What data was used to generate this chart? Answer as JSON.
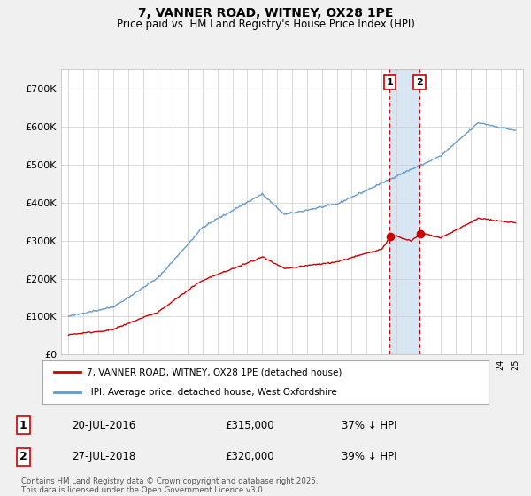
{
  "title": "7, VANNER ROAD, WITNEY, OX28 1PE",
  "subtitle": "Price paid vs. HM Land Registry's House Price Index (HPI)",
  "legend_line1": "7, VANNER ROAD, WITNEY, OX28 1PE (detached house)",
  "legend_line2": "HPI: Average price, detached house, West Oxfordshire",
  "sale1_date": "20-JUL-2016",
  "sale1_price": "£315,000",
  "sale1_hpi": "37% ↓ HPI",
  "sale1_year": 2016.55,
  "sale1_value": 315000,
  "sale2_date": "27-JUL-2018",
  "sale2_price": "£320,000",
  "sale2_hpi": "39% ↓ HPI",
  "sale2_year": 2018.55,
  "sale2_value": 320000,
  "footnote": "Contains HM Land Registry data © Crown copyright and database right 2025.\nThis data is licensed under the Open Government Licence v3.0.",
  "red_color": "#cc0000",
  "blue_color": "#6699cc",
  "shade_color": "#ddeeff",
  "ylim_min": 0,
  "ylim_max": 750000,
  "xlim_min": 1994.5,
  "xlim_max": 2025.5,
  "background_color": "#f0f0f0",
  "plot_bg_color": "#ffffff"
}
